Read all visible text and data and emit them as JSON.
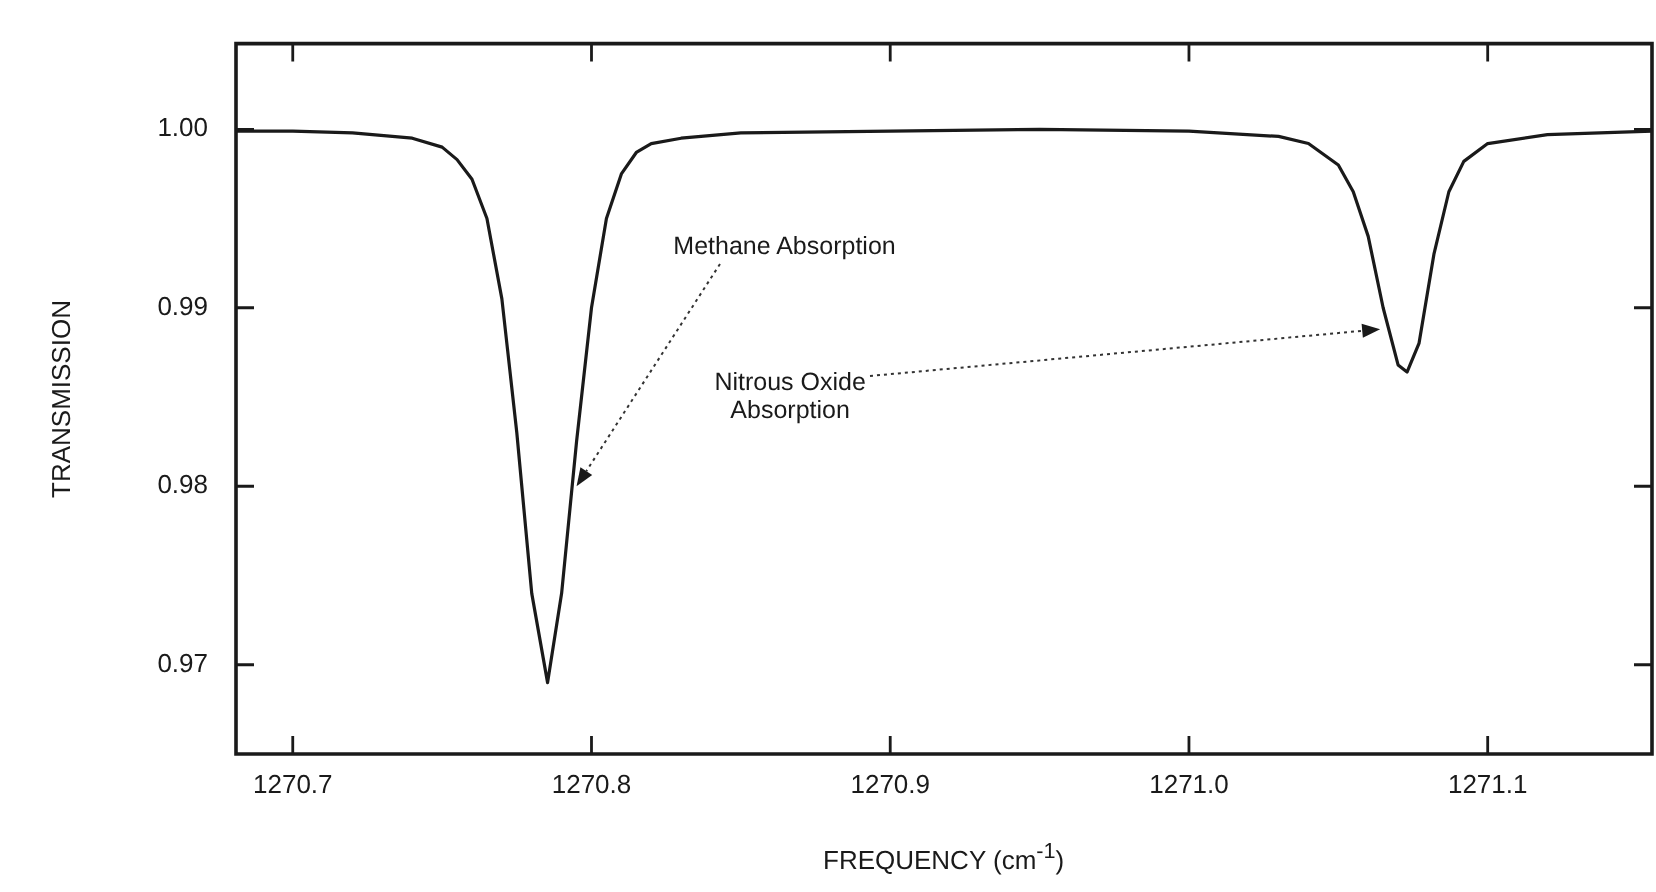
{
  "chart_data": {
    "type": "line",
    "xlabel": "FREQUENCY (cm$^{-1}$)",
    "ylabel": "TRANSMISSION",
    "xlim": [
      1270.681,
      1271.155
    ],
    "ylim": [
      0.965,
      1.0048
    ],
    "xticks": [
      1270.7,
      1270.8,
      1270.9,
      {
        "value": 1271.0,
        "label": "1271.0"
      },
      1271.1
    ],
    "yticks": [
      0.97,
      0.98,
      0.99,
      {
        "value": 1.0,
        "label": "1.00"
      }
    ],
    "grid": false,
    "legend": false,
    "marker": "none",
    "line_style": "solid",
    "annotations": [
      {
        "text": "Methane Absorption",
        "x": 1270.795,
        "y": 0.98
      },
      {
        "text": "Nitrous Oxide Absorption",
        "x": 1271.064,
        "y": 0.9888
      }
    ],
    "series": [
      {
        "color": "#1a1a1a",
        "x": [
          1270.681,
          1270.7,
          1270.72,
          1270.74,
          1270.75,
          1270.755,
          1270.76,
          1270.765,
          1270.77,
          1270.775,
          1270.78,
          1270.7853,
          1270.79,
          1270.795,
          1270.8,
          1270.805,
          1270.81,
          1270.815,
          1270.82,
          1270.83,
          1270.85,
          1270.9,
          1270.95,
          1271.0,
          1271.03,
          1271.04,
          1271.05,
          1271.055,
          1271.06,
          1271.065,
          1271.07,
          1271.073,
          1271.077,
          1271.082,
          1271.087,
          1271.092,
          1271.1,
          1271.12,
          1271.155
        ],
        "values": [
          0.9999,
          0.9999,
          0.9998,
          0.9995,
          0.999,
          0.9983,
          0.9972,
          0.995,
          0.9905,
          0.983,
          0.974,
          0.969,
          0.974,
          0.9825,
          0.99,
          0.995,
          0.9975,
          0.9987,
          0.9992,
          0.9995,
          0.9998,
          0.9999,
          1.0,
          0.9999,
          0.9996,
          0.9992,
          0.998,
          0.9965,
          0.994,
          0.99,
          0.9868,
          0.9864,
          0.988,
          0.993,
          0.9965,
          0.9982,
          0.9992,
          0.9997,
          0.9999
        ]
      }
    ]
  }
}
